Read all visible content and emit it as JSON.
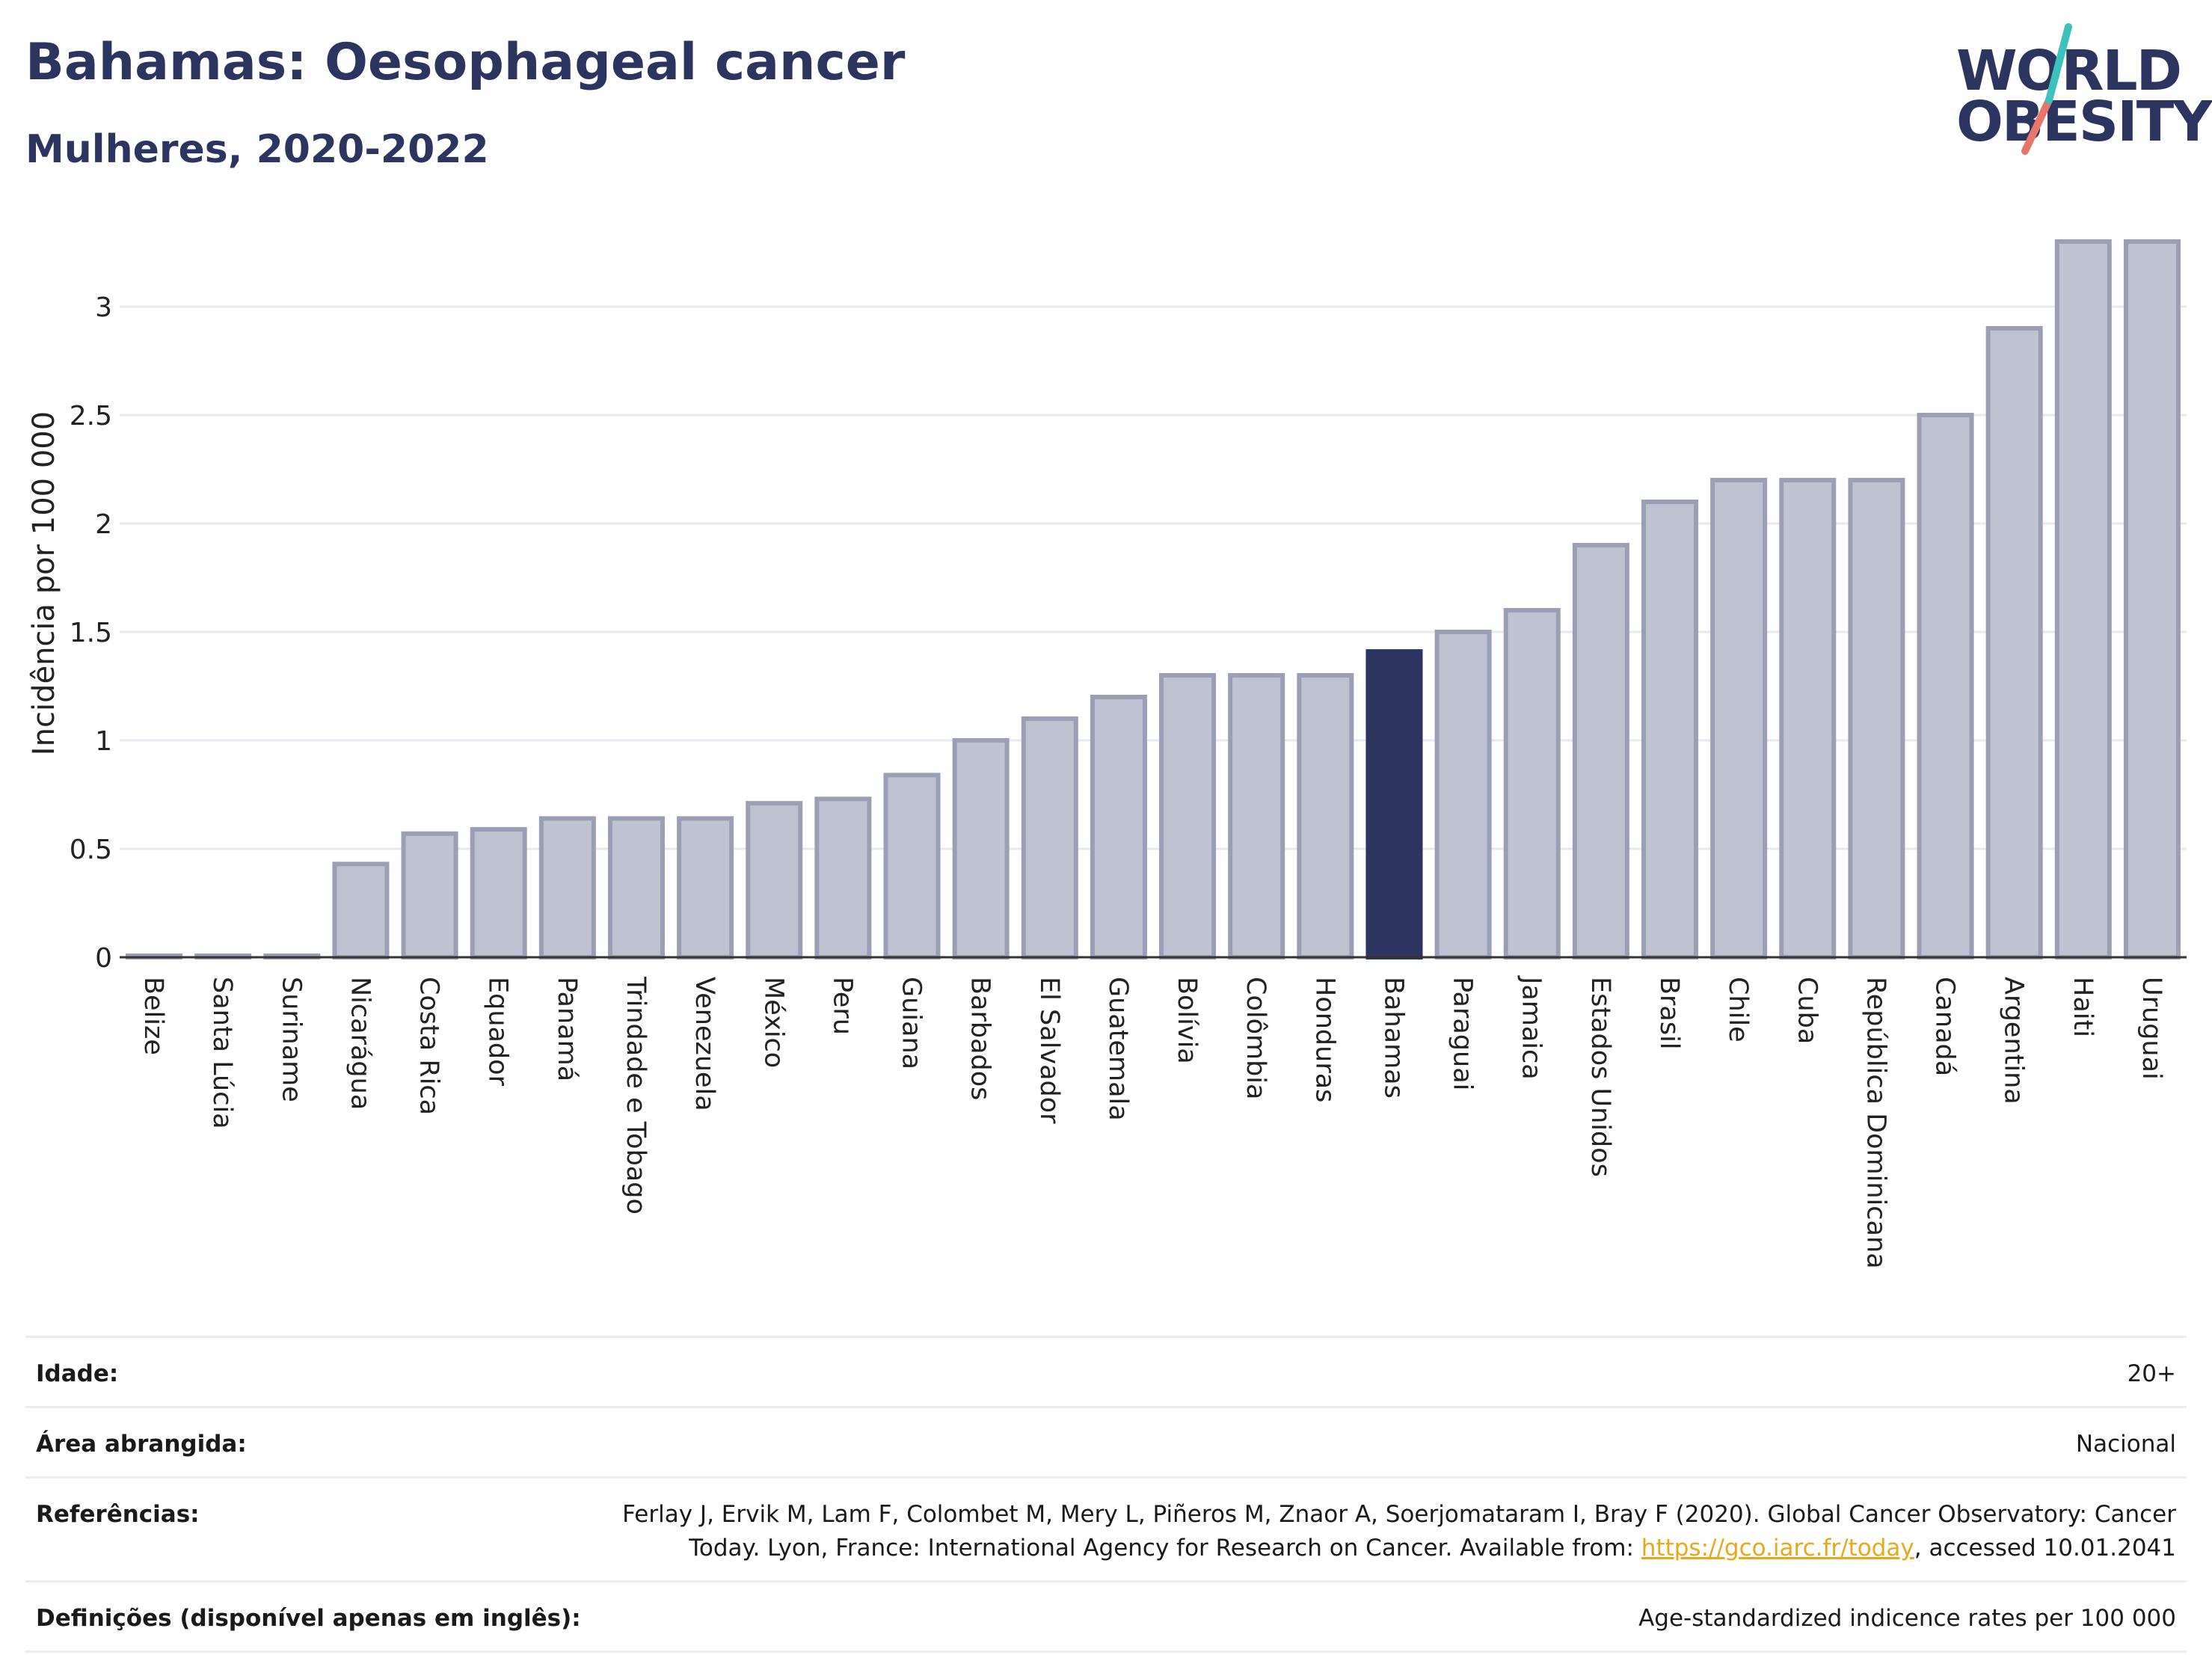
{
  "title": "Bahamas: Oesophageal cancer",
  "subtitle": "Mulheres, 2020-2022",
  "logo": {
    "line1": "WORLD",
    "line2": "OBESITY"
  },
  "colors": {
    "bar": "#bfc3d1",
    "bar_border": "#9a9fb6",
    "highlight": "#2b3560"
  },
  "chart_data": {
    "type": "bar",
    "highlight": "Bahamas",
    "ylabel": "Incidência por 100 000",
    "ylim": [
      0,
      3.35
    ],
    "yticks": [
      0,
      0.5,
      1,
      1.5,
      2,
      2.5,
      3
    ],
    "ytick_labels": [
      "0",
      "0.5",
      "1",
      "1.5",
      "2",
      "2.5",
      "3"
    ],
    "grid": true,
    "categories": [
      "Belize",
      "Santa Lúcia",
      "Suriname",
      "Nicarágua",
      "Costa Rica",
      "Equador",
      "Panamá",
      "Trindade e Tobago",
      "Venezuela",
      "México",
      "Peru",
      "Guiana",
      "Barbados",
      "El Salvador",
      "Guatemala",
      "Bolívia",
      "Colômbia",
      "Honduras",
      "Bahamas",
      "Paraguai",
      "Jamaica",
      "Estados Unidos",
      "Brasil",
      "Chile",
      "Cuba",
      "República Dominicana",
      "Canadá",
      "Argentina",
      "Haiti",
      "Uruguai"
    ],
    "values": [
      0,
      0,
      0,
      0.43,
      0.57,
      0.59,
      0.64,
      0.64,
      0.64,
      0.71,
      0.73,
      0.84,
      1.0,
      1.1,
      1.2,
      1.3,
      1.3,
      1.3,
      1.41,
      1.5,
      1.6,
      1.9,
      2.1,
      2.2,
      2.2,
      2.2,
      2.5,
      2.9,
      3.3,
      3.3
    ]
  },
  "info": [
    {
      "label": "Idade:",
      "value": "20+"
    },
    {
      "label": "Área abrangida:",
      "value": "Nacional"
    },
    {
      "label": "Referências:",
      "value_line1": "Ferlay J, Ervik M, Lam F, Colombet M, Mery L, Piñeros M, Znaor A, Soerjomataram I, Bray F (2020). Global Cancer Observatory: Cancer",
      "value_pre": "Today. Lyon, France: International Agency for Research on Cancer. Available from: ",
      "link": "https://gco.iarc.fr/today",
      "value_post": ", accessed 10.01.2041"
    },
    {
      "label": "Definições (disponível apenas em inglês):",
      "value": "Age-standardized indicence rates per 100 000"
    }
  ]
}
